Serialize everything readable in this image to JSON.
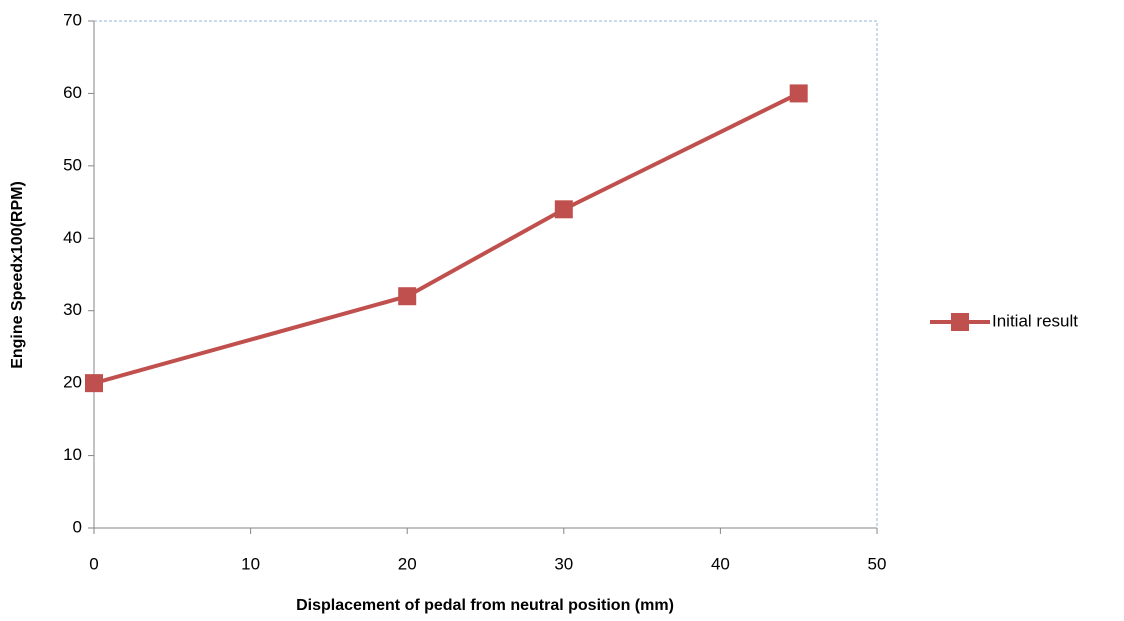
{
  "chart_data": {
    "type": "line",
    "x_label": "Displacement of pedal from neutral position (mm)",
    "y_label": "Engine Speedx100(RPM)",
    "x": [
      0,
      20,
      30,
      45
    ],
    "series": [
      {
        "name": "Initial result",
        "color": "#c0504d",
        "values": [
          20,
          32,
          44,
          60
        ]
      }
    ],
    "xlim": [
      0,
      50
    ],
    "xticks": [
      0,
      10,
      20,
      30,
      40,
      50
    ],
    "ylim": [
      0,
      70
    ],
    "yticks": [
      0,
      10,
      20,
      30,
      40,
      50,
      60,
      70
    ],
    "legend": "right"
  }
}
